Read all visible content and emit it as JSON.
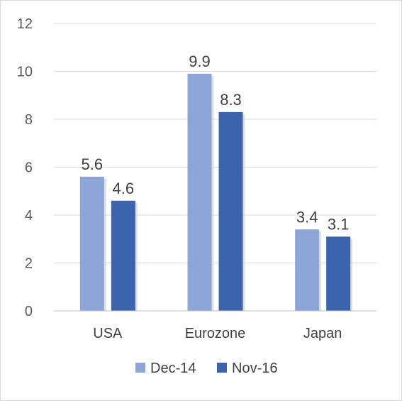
{
  "chart_data": {
    "type": "bar",
    "categories": [
      "USA",
      "Eurozone",
      "Japan"
    ],
    "series": [
      {
        "name": "Dec-14",
        "color": "#8EA6D7",
        "values": [
          5.6,
          9.9,
          3.4
        ],
        "labels": [
          "5.6",
          "9.9",
          "3.4"
        ]
      },
      {
        "name": "Nov-16",
        "color": "#3B64AD",
        "values": [
          4.6,
          8.3,
          3.1
        ],
        "labels": [
          "4.6",
          "8.3",
          "3.1"
        ]
      }
    ],
    "ylim": [
      0,
      12
    ],
    "yticks": [
      "0",
      "2",
      "4",
      "6",
      "8",
      "10",
      "12"
    ],
    "grid": true,
    "legend": "bottom"
  }
}
